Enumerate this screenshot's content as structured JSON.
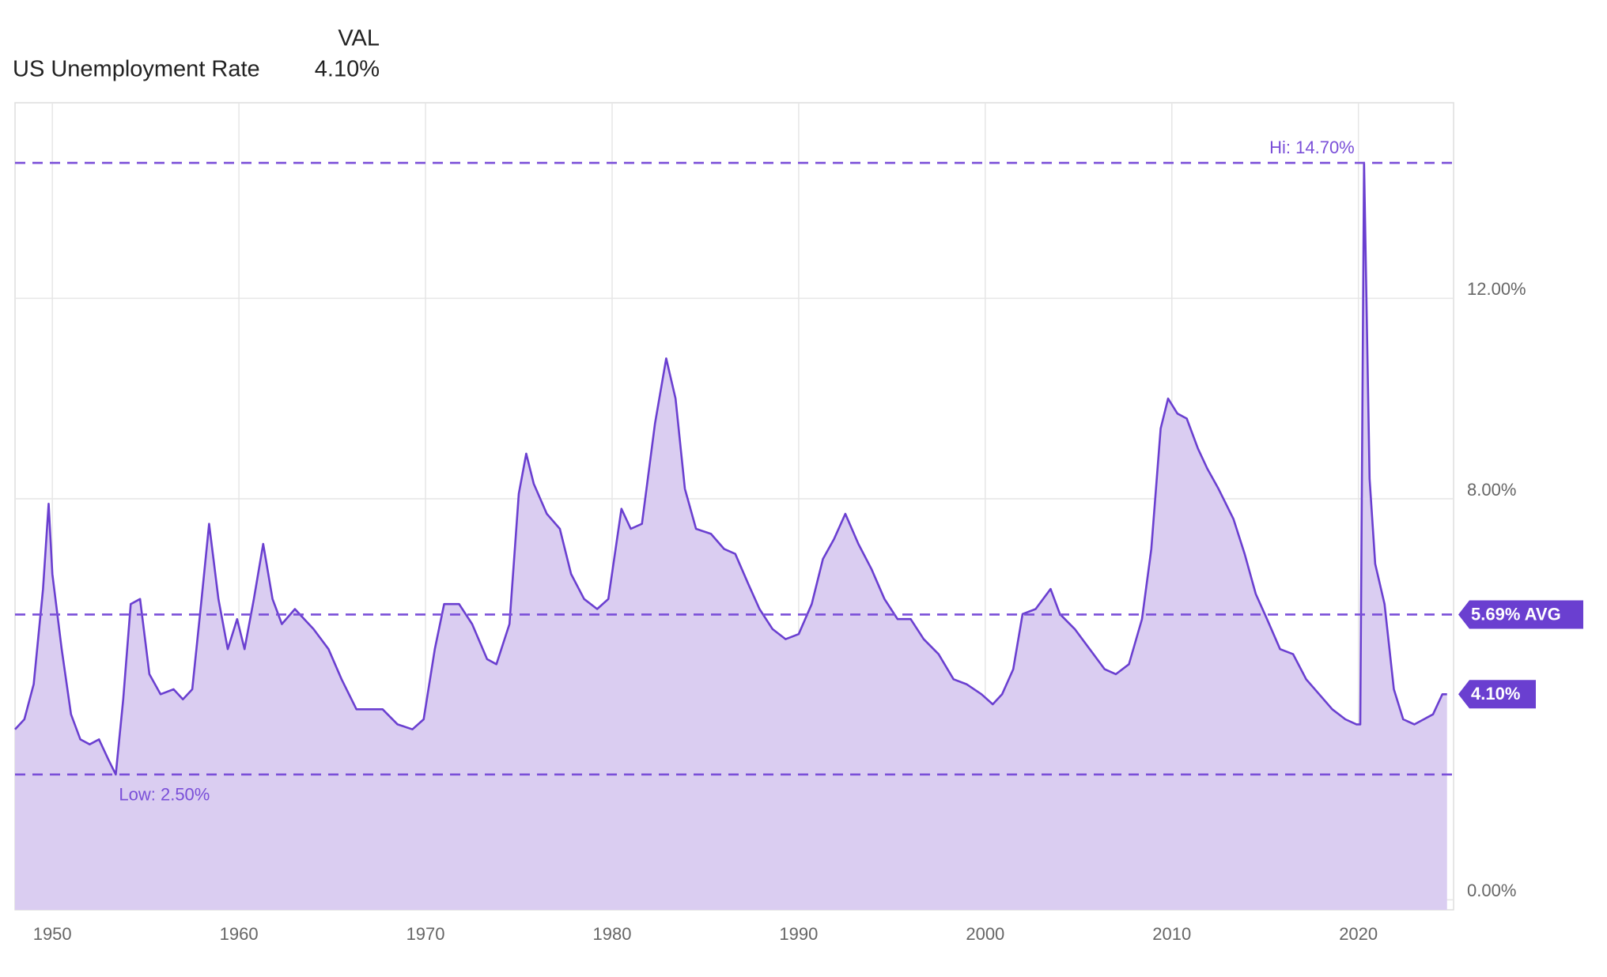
{
  "chart_data": {
    "type": "area",
    "value_column_header": "VAL",
    "x": [
      1948.0,
      1948.5,
      1949.0,
      1949.5,
      1949.8,
      1950.0,
      1950.5,
      1951.0,
      1951.5,
      1952.0,
      1952.5,
      1953.0,
      1953.4,
      1953.8,
      1954.2,
      1954.7,
      1955.2,
      1955.8,
      1956.5,
      1957.0,
      1957.5,
      1958.0,
      1958.4,
      1958.9,
      1959.4,
      1959.9,
      1960.3,
      1960.8,
      1961.3,
      1961.8,
      1962.3,
      1963.0,
      1963.5,
      1964.0,
      1964.8,
      1965.5,
      1966.3,
      1967.0,
      1967.7,
      1968.5,
      1969.3,
      1969.9,
      1970.5,
      1971.0,
      1971.8,
      1972.5,
      1973.3,
      1973.8,
      1974.5,
      1975.0,
      1975.4,
      1975.8,
      1976.5,
      1977.2,
      1977.8,
      1978.5,
      1979.2,
      1979.8,
      1980.5,
      1981.0,
      1981.6,
      1982.3,
      1982.9,
      1983.4,
      1983.9,
      1984.5,
      1985.3,
      1986.0,
      1986.6,
      1987.3,
      1987.9,
      1988.6,
      1989.3,
      1990.0,
      1990.7,
      1991.3,
      1991.9,
      1992.5,
      1993.2,
      1993.9,
      1994.6,
      1995.3,
      1996.0,
      1996.7,
      1997.5,
      1998.3,
      1999.0,
      1999.8,
      2000.4,
      2000.9,
      2001.5,
      2002.0,
      2002.7,
      2003.5,
      2004.0,
      2004.8,
      2005.6,
      2006.4,
      2007.0,
      2007.7,
      2008.4,
      2008.9,
      2009.4,
      2009.8,
      2010.3,
      2010.8,
      2011.4,
      2011.9,
      2012.5,
      2013.3,
      2013.9,
      2014.5,
      2015.1,
      2015.8,
      2016.5,
      2017.2,
      2017.9,
      2018.6,
      2019.3,
      2019.9,
      2020.1,
      2020.3,
      2020.6,
      2020.9,
      2021.4,
      2021.9,
      2022.4,
      2023.0,
      2023.5,
      2024.0,
      2024.5,
      2024.75
    ],
    "series": [
      {
        "name": "US Unemployment Rate",
        "color": "#6a3fd0",
        "fill": "#dacdf1",
        "values": [
          3.4,
          3.6,
          4.3,
          6.2,
          7.9,
          6.5,
          5.0,
          3.7,
          3.2,
          3.1,
          3.2,
          2.8,
          2.5,
          4.0,
          5.9,
          6.0,
          4.5,
          4.1,
          4.2,
          4.0,
          4.2,
          6.0,
          7.5,
          6.0,
          5.0,
          5.6,
          5.0,
          6.0,
          7.1,
          6.0,
          5.5,
          5.8,
          5.6,
          5.4,
          5.0,
          4.4,
          3.8,
          3.8,
          3.8,
          3.5,
          3.4,
          3.6,
          5.0,
          5.9,
          5.9,
          5.5,
          4.8,
          4.7,
          5.5,
          8.1,
          8.9,
          8.3,
          7.7,
          7.4,
          6.5,
          6.0,
          5.8,
          6.0,
          7.8,
          7.4,
          7.5,
          9.5,
          10.8,
          10.0,
          8.2,
          7.4,
          7.3,
          7.0,
          6.9,
          6.3,
          5.8,
          5.4,
          5.2,
          5.3,
          5.9,
          6.8,
          7.2,
          7.7,
          7.1,
          6.6,
          6.0,
          5.6,
          5.6,
          5.2,
          4.9,
          4.4,
          4.3,
          4.1,
          3.9,
          4.1,
          4.6,
          5.7,
          5.8,
          6.2,
          5.7,
          5.4,
          5.0,
          4.6,
          4.5,
          4.7,
          5.6,
          7.0,
          9.4,
          10.0,
          9.7,
          9.6,
          9.0,
          8.6,
          8.2,
          7.6,
          6.9,
          6.1,
          5.6,
          5.0,
          4.9,
          4.4,
          4.1,
          3.8,
          3.6,
          3.5,
          3.5,
          14.7,
          8.4,
          6.7,
          5.9,
          4.2,
          3.6,
          3.5,
          3.6,
          3.7,
          4.1,
          4.1
        ]
      }
    ],
    "xlim": [
      1948,
      2025.1
    ],
    "xticks": [
      1950,
      1960,
      1970,
      1980,
      1990,
      2000,
      2010,
      2020
    ],
    "ylim": [
      -0.2,
      15.9
    ],
    "yticks": [
      {
        "value": 0,
        "label": "0.00%"
      },
      {
        "value": 8,
        "label": "8.00%"
      },
      {
        "value": 12,
        "label": "12.00%"
      }
    ],
    "grid": true,
    "hi": {
      "value": 14.7,
      "label": "Hi: 14.70%"
    },
    "low": {
      "value": 2.5,
      "label": "Low: 2.50%"
    },
    "avg": {
      "value": 5.69,
      "label": "5.69% AVG"
    },
    "last_value": {
      "value": 4.1,
      "label": "4.10%"
    },
    "ref_color": "#7a4fd8"
  }
}
